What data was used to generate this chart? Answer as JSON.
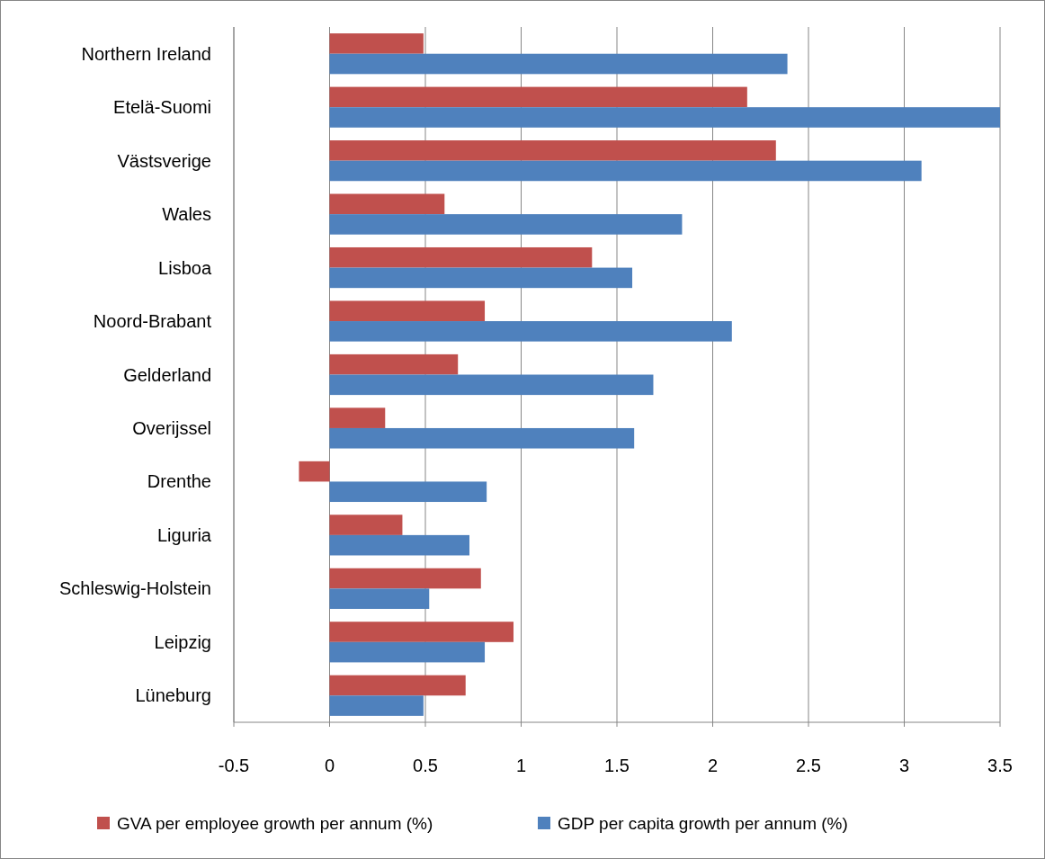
{
  "chart_data": {
    "type": "bar",
    "orientation": "horizontal",
    "categories": [
      "Northern Ireland",
      "Etelä-Suomi",
      "Västsverige",
      "Wales",
      "Lisboa",
      "Noord-Brabant",
      "Gelderland",
      "Overijssel",
      "Drenthe",
      "Liguria",
      "Schleswig-Holstein",
      "Leipzig",
      "Lüneburg"
    ],
    "series": [
      {
        "name": "GVA per employee growth per annum (%)",
        "color": "#c0504d",
        "values": [
          0.49,
          2.18,
          2.33,
          0.6,
          1.37,
          0.81,
          0.67,
          0.29,
          -0.16,
          0.38,
          0.79,
          0.96,
          0.71
        ]
      },
      {
        "name": "GDP per capita growth per annum (%)",
        "color": "#4f81bd",
        "values": [
          2.39,
          3.5,
          3.09,
          1.84,
          1.58,
          2.1,
          1.69,
          1.59,
          0.82,
          0.73,
          0.52,
          0.81,
          0.49
        ]
      }
    ],
    "xlim": [
      -0.5,
      3.5
    ],
    "xticks": [
      -0.5,
      0,
      0.5,
      1,
      1.5,
      2,
      2.5,
      3,
      3.5
    ],
    "grid": "x",
    "legend": "bottom"
  }
}
